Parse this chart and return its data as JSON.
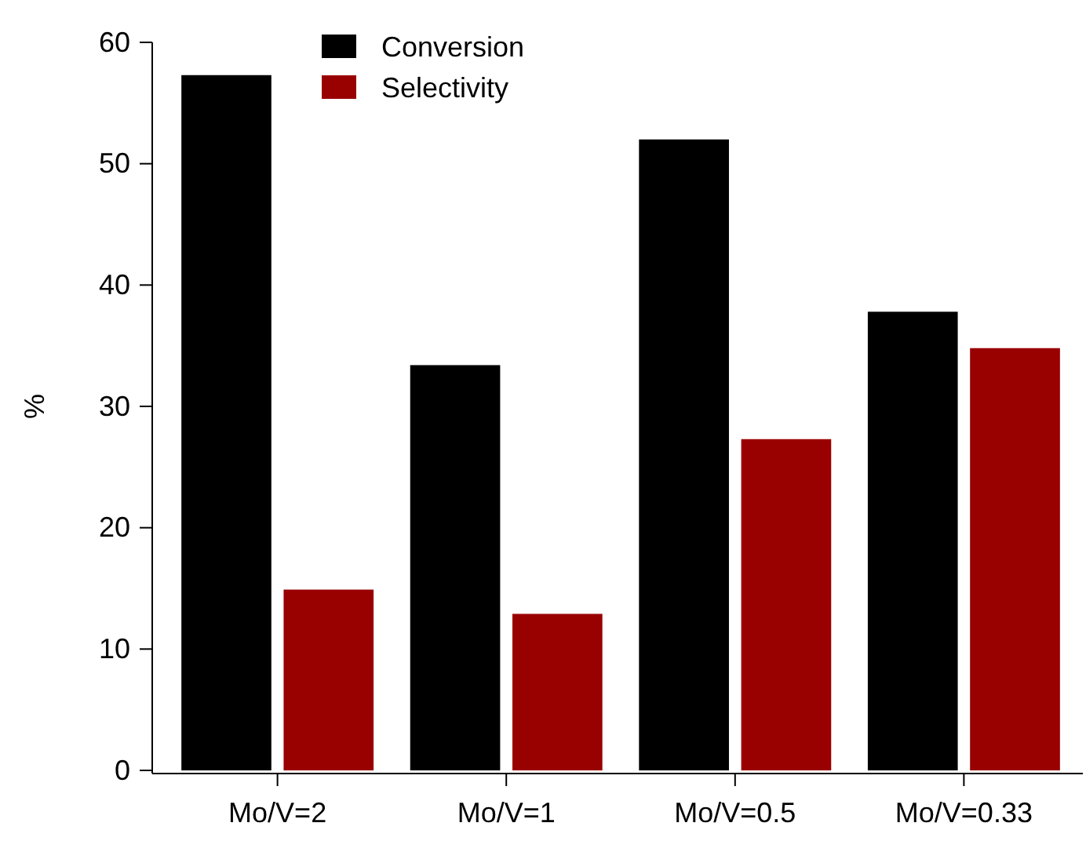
{
  "chart_data": {
    "type": "bar",
    "ylabel": "%",
    "categories": [
      "Mo/V=2",
      "Mo/V=1",
      "Mo/V=0.5",
      "Mo/V=0.33"
    ],
    "series": [
      {
        "name": "Conversion",
        "color": "#000000",
        "values": [
          57.3,
          33.4,
          52.0,
          37.8
        ]
      },
      {
        "name": "Selectivity",
        "color": "#990000",
        "values": [
          14.9,
          12.9,
          27.3,
          34.8
        ]
      }
    ],
    "ylim": [
      0,
      60
    ],
    "yticks": [
      0,
      10,
      20,
      30,
      40,
      50,
      60
    ],
    "legend": "top left",
    "grid": false
  }
}
